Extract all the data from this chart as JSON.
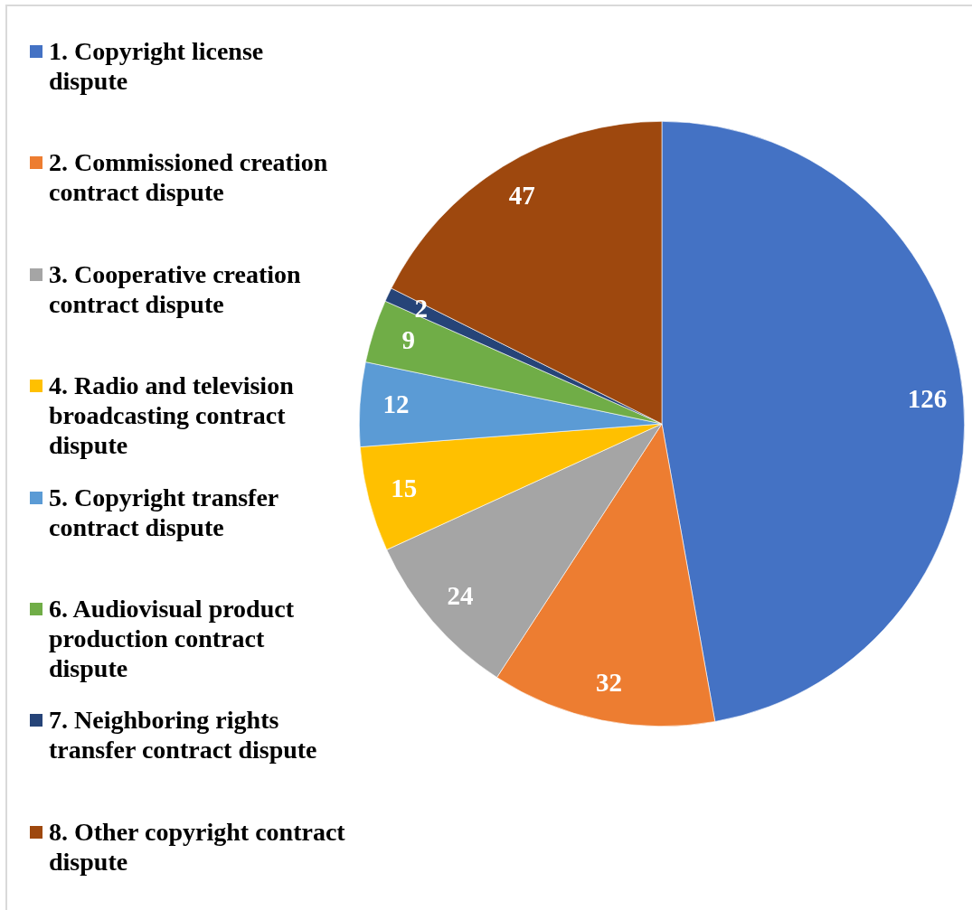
{
  "chart_data": {
    "type": "pie",
    "categories": [
      "1. Copyright license dispute",
      "2. Commissioned creation contract dispute",
      "3. Cooperative creation contract dispute",
      "4. Radio and television broadcasting contract dispute",
      "5. Copyright transfer contract dispute",
      "6. Audiovisual product production contract dispute",
      "7. Neighboring rights transfer contract dispute",
      "8. Other copyright contract dispute"
    ],
    "values": [
      126,
      32,
      24,
      15,
      12,
      9,
      2,
      47
    ],
    "colors": [
      "#4472c4",
      "#ed7d31",
      "#a5a5a5",
      "#ffc000",
      "#5b9bd5",
      "#70ad47",
      "#264478",
      "#9e480e"
    ],
    "data_labels": true,
    "legend": "left"
  }
}
